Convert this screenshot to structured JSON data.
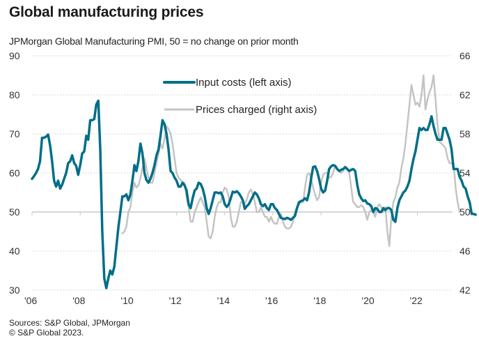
{
  "chart_data": {
    "type": "line",
    "title": "Global manufacturing prices",
    "subtitle": "JPMorgan Global Manufacturing PMI, 50 = no change on prior month",
    "xlabel": "",
    "ylabel_left": "",
    "ylabel_right": "",
    "x_start": "2006-01",
    "x_tick_labels": [
      "'06",
      "'08",
      "'10",
      "'12",
      "'14",
      "'16",
      "'18",
      "'20",
      "'22"
    ],
    "x_ticks_year": [
      2006,
      2008,
      2010,
      2012,
      2014,
      2016,
      2018,
      2020,
      2022
    ],
    "left_axis": {
      "ylim": [
        30,
        90
      ],
      "ticks": [
        30,
        40,
        50,
        60,
        70,
        80,
        90
      ]
    },
    "right_axis": {
      "ylim": [
        42,
        66
      ],
      "ticks": [
        42,
        46,
        50,
        54,
        58,
        62,
        66
      ]
    },
    "grid": true,
    "legend_position": "top-center",
    "series": [
      {
        "name": "Input costs (left axis)",
        "axis": "left",
        "color": "#006e87",
        "start": "2006-01",
        "values": [
          58.5,
          59.2,
          60,
          61,
          63,
          69,
          69,
          69.3,
          69.8,
          67,
          63,
          58,
          56.5,
          58,
          56,
          57,
          58.5,
          60,
          62.5,
          63,
          64.5,
          62.5,
          61.8,
          59.5,
          62,
          65,
          65.5,
          69.5,
          68.5,
          73.5,
          73.5,
          73.8,
          77.5,
          78.5,
          66,
          45,
          33,
          30.5,
          33,
          35,
          34,
          36,
          41,
          46,
          50,
          54,
          54,
          54.5,
          53,
          54.5,
          58,
          62,
          60.5,
          63,
          67.5,
          65,
          60,
          58.2,
          57.5,
          58.5,
          60,
          62,
          64.5,
          66,
          69.5,
          73.5,
          72.5,
          70,
          66,
          60.5,
          60,
          58.8,
          58,
          56.5,
          56.5,
          57.5,
          56.8,
          55.5,
          52,
          51,
          53.5,
          55.5,
          56,
          57.5,
          57.2,
          56,
          54,
          51,
          49.5,
          51,
          53,
          55,
          55,
          54.8,
          55,
          54,
          52,
          51.3,
          52,
          53.5,
          55.2,
          55,
          55.3,
          54.8,
          54,
          53,
          50.8,
          51.5,
          52,
          53,
          54,
          55,
          54.5,
          53.5,
          52,
          51.5,
          52,
          51,
          50.5,
          52,
          52,
          51,
          50.5,
          49.5,
          48.5,
          48.3,
          48.2,
          48.5,
          48.3,
          48,
          48.5,
          49,
          51,
          52.5,
          52.8,
          53,
          53.5,
          53,
          55,
          58.5,
          61.5,
          61.7,
          60.5,
          58.5,
          56,
          55,
          55.5,
          58,
          61,
          61.7,
          62,
          61.8,
          61,
          60.5,
          60.8,
          61,
          61.5,
          61,
          60.5,
          60.8,
          61,
          60.5,
          57,
          54.5,
          53.5,
          52.8,
          53,
          52.2,
          52,
          51.5,
          50,
          51,
          50.8,
          50,
          50,
          51,
          50.5,
          51,
          51,
          50.5,
          48,
          47.5,
          51,
          53,
          54,
          55,
          55.5,
          56.5,
          58,
          61,
          63.5,
          65.5,
          68.5,
          71.5,
          71,
          71.5,
          71,
          71,
          72.5,
          74.5,
          72,
          70,
          68.5,
          68.5,
          68.5,
          71.5,
          71.5,
          70,
          68.5,
          66,
          61,
          61,
          61,
          59,
          58,
          56.5,
          56,
          54,
          52.5,
          49.5,
          49.5,
          49.3
        ]
      },
      {
        "name": "Prices charged (right axis)",
        "axis": "right",
        "color": "#c4c4c4",
        "start": "2009-10",
        "values": [
          47.8,
          48,
          48.5,
          50,
          50.5,
          52,
          53,
          52.5,
          52.7,
          53.5,
          54.5,
          55.5,
          54.5,
          53.5,
          53,
          53,
          54,
          55,
          56,
          57,
          56.5,
          57.5,
          58.8,
          58.5,
          58,
          57,
          55.5,
          54,
          53.5,
          53.3,
          53,
          53,
          51.5,
          50.5,
          49,
          49,
          50,
          50.5,
          51,
          51.5,
          51,
          50.5,
          49,
          47.5,
          47.3,
          48,
          49.5,
          50.5,
          51,
          51,
          52,
          52.5,
          52.3,
          51.5,
          49.5,
          48.5,
          48.5,
          49,
          50,
          51,
          51,
          50.8,
          51.3,
          52,
          52.3,
          51.8,
          51,
          50,
          50,
          50.5,
          50,
          49.5,
          49.5,
          49,
          49.5,
          49,
          48.8,
          48.8,
          49.5,
          49.8,
          49,
          48.5,
          48.3,
          48.3,
          48.5,
          49,
          50,
          50.5,
          50.8,
          51,
          51,
          52.5,
          53.8,
          54,
          53.5,
          52.5,
          51.8,
          51.2,
          51.5,
          53,
          53.8,
          54,
          54,
          53.5,
          53.6,
          54,
          54.8,
          54.5,
          54.2,
          54,
          54.2,
          54.6,
          54.5,
          54,
          52.5,
          51,
          50.8,
          50.5,
          50.5,
          50.7,
          50.5,
          50,
          49.2,
          50,
          50.2,
          50,
          49.5,
          50.5,
          50.8,
          50.5,
          50,
          50.5,
          48,
          46.5,
          49.5,
          51,
          51.5,
          52.5,
          53,
          54.5,
          55.5,
          57,
          59,
          61,
          63,
          62,
          61,
          61.2,
          60.8,
          62,
          64,
          60.5,
          61.5,
          62.3,
          62.8,
          64,
          61.5,
          59,
          57.2,
          57,
          56.8,
          56.5,
          55.5,
          55,
          55,
          55,
          52.5,
          51,
          50
        ]
      }
    ]
  },
  "legend": {
    "input_costs": "Input costs (left axis)",
    "prices_charged": "Prices charged (right axis)"
  },
  "footer": {
    "sources": "Sources: S&P Global, JPMorgan",
    "copyright": "© S&P Global 2023."
  }
}
